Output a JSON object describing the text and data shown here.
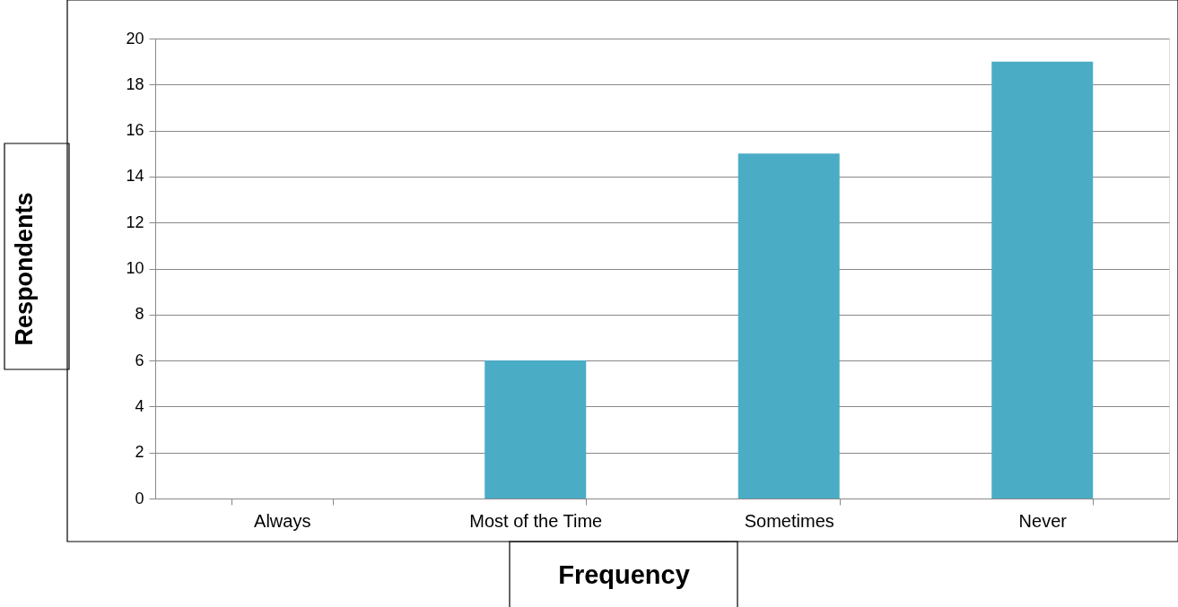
{
  "chart_data": {
    "type": "bar",
    "xlabel": "Frequency",
    "ylabel": "Respondents",
    "categories": [
      "Always",
      "Most of the Time",
      "Sometimes",
      "Never"
    ],
    "values": [
      0,
      6,
      15,
      19
    ],
    "color": "#4bacc6",
    "ylim": [
      0,
      20
    ],
    "yticks": [
      0,
      2,
      4,
      6,
      8,
      10,
      12,
      14,
      16,
      18,
      20
    ],
    "grid": "y"
  }
}
